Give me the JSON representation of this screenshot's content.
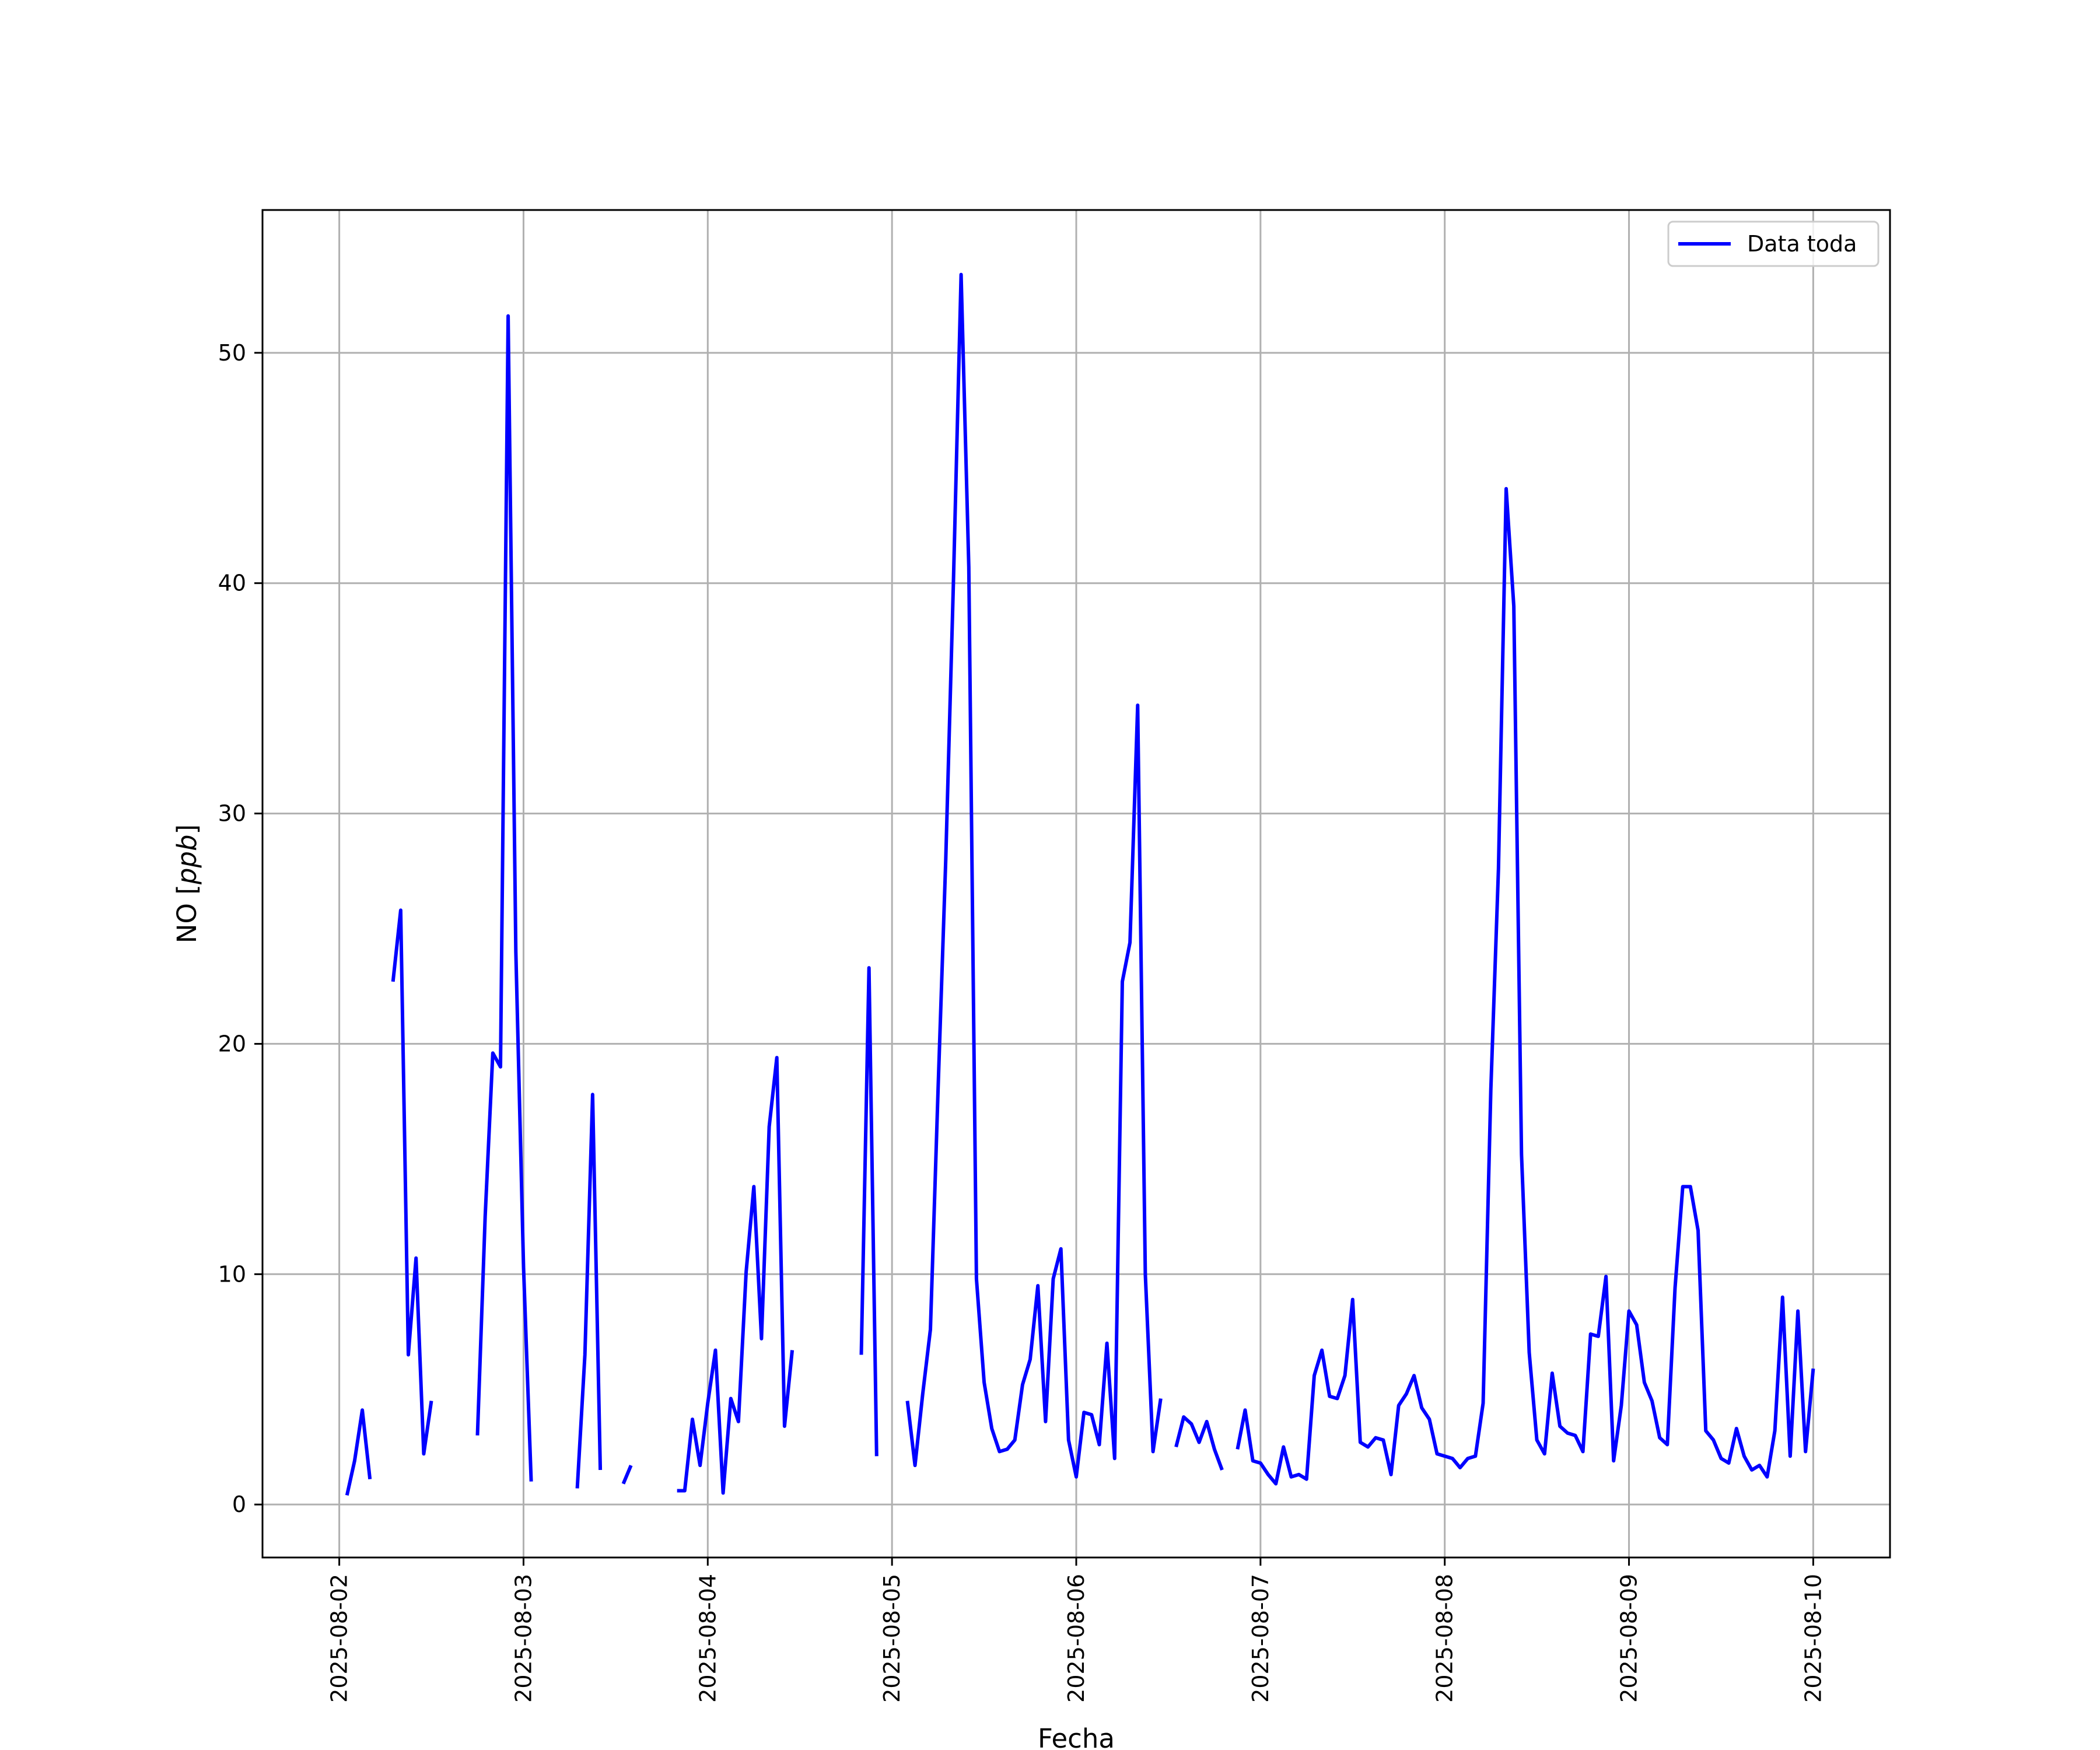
{
  "chart_data": {
    "type": "line",
    "title": "",
    "xlabel": "Fecha",
    "ylabel_text": "NO ",
    "ylabel_unit": "ppb",
    "x_unit": "days",
    "xlim": [
      "2025-08-01 14:00",
      "2025-08-10 10:00"
    ],
    "ylim": [
      -2.3,
      56.2
    ],
    "xticks": [
      "2025-08-02",
      "2025-08-03",
      "2025-08-04",
      "2025-08-05",
      "2025-08-06",
      "2025-08-07",
      "2025-08-08",
      "2025-08-09",
      "2025-08-10"
    ],
    "yticks": [
      0,
      10,
      20,
      30,
      40,
      50
    ],
    "grid": true,
    "legend_position": "top-right",
    "colors": {
      "series": "#0000ff",
      "grid": "#b0b0b0"
    },
    "series": [
      {
        "name": "Data toda",
        "segments": [
          [
            [
              "2025-08-02 01:00",
              0.4
            ],
            [
              "2025-08-02 02:00",
              1.9
            ],
            [
              "2025-08-02 03:00",
              4.1
            ],
            [
              "2025-08-02 04:00",
              1.1
            ]
          ],
          [
            [
              "2025-08-02 07:00",
              22.7
            ],
            [
              "2025-08-02 08:00",
              25.8
            ],
            [
              "2025-08-02 09:00",
              6.5
            ],
            [
              "2025-08-02 10:00",
              10.7
            ],
            [
              "2025-08-02 11:00",
              2.2
            ],
            [
              "2025-08-02 12:00",
              4.5
            ]
          ],
          [
            [
              "2025-08-02 18:00",
              3.0
            ],
            [
              "2025-08-02 19:00",
              12.5
            ],
            [
              "2025-08-02 20:00",
              19.6
            ],
            [
              "2025-08-02 21:00",
              19.0
            ],
            [
              "2025-08-02 22:00",
              51.6
            ],
            [
              "2025-08-02 23:00",
              24.0
            ],
            [
              "2025-08-03 00:00",
              10.3
            ],
            [
              "2025-08-03 01:00",
              1.0
            ]
          ],
          [
            [
              "2025-08-03 07:00",
              0.7
            ],
            [
              "2025-08-03 08:00",
              6.5
            ],
            [
              "2025-08-03 09:00",
              17.8
            ],
            [
              "2025-08-03 10:00",
              1.5
            ]
          ],
          [
            [
              "2025-08-03 13:00",
              0.9
            ],
            [
              "2025-08-03 14:00",
              1.7
            ]
          ],
          [
            [
              "2025-08-03 20:00",
              0.6
            ],
            [
              "2025-08-03 21:00",
              0.6
            ],
            [
              "2025-08-03 22:00",
              3.7
            ],
            [
              "2025-08-03 23:00",
              1.7
            ],
            [
              "2025-08-04 00:00",
              4.4
            ],
            [
              "2025-08-04 01:00",
              6.7
            ],
            [
              "2025-08-04 02:00",
              0.5
            ],
            [
              "2025-08-04 03:00",
              4.6
            ],
            [
              "2025-08-04 04:00",
              3.6
            ],
            [
              "2025-08-04 05:00",
              10.1
            ],
            [
              "2025-08-04 06:00",
              13.8
            ],
            [
              "2025-08-04 07:00",
              7.2
            ],
            [
              "2025-08-04 08:00",
              16.4
            ],
            [
              "2025-08-04 09:00",
              19.4
            ],
            [
              "2025-08-04 10:00",
              3.4
            ],
            [
              "2025-08-04 11:00",
              6.7
            ]
          ],
          [
            [
              "2025-08-04 20:00",
              6.5
            ],
            [
              "2025-08-04 21:00",
              23.3
            ],
            [
              "2025-08-04 22:00",
              2.1
            ]
          ],
          [
            [
              "2025-08-05 02:00",
              4.5
            ],
            [
              "2025-08-05 03:00",
              1.7
            ],
            [
              "2025-08-05 04:00",
              4.8
            ],
            [
              "2025-08-05 05:00",
              7.6
            ],
            [
              "2025-08-05 06:00",
              18.0
            ],
            [
              "2025-08-05 07:00",
              28.0
            ],
            [
              "2025-08-05 08:00",
              40.0
            ],
            [
              "2025-08-05 09:00",
              53.4
            ],
            [
              "2025-08-05 10:00",
              40.7
            ],
            [
              "2025-08-05 11:00",
              9.8
            ],
            [
              "2025-08-05 12:00",
              5.3
            ],
            [
              "2025-08-05 13:00",
              3.3
            ],
            [
              "2025-08-05 14:00",
              2.3
            ],
            [
              "2025-08-05 15:00",
              2.4
            ],
            [
              "2025-08-05 16:00",
              2.8
            ],
            [
              "2025-08-05 17:00",
              5.2
            ],
            [
              "2025-08-05 18:00",
              6.3
            ],
            [
              "2025-08-05 19:00",
              9.5
            ],
            [
              "2025-08-05 20:00",
              3.6
            ],
            [
              "2025-08-05 21:00",
              9.8
            ],
            [
              "2025-08-05 22:00",
              11.1
            ],
            [
              "2025-08-05 23:00",
              2.8
            ],
            [
              "2025-08-06 00:00",
              1.2
            ],
            [
              "2025-08-06 01:00",
              4.0
            ],
            [
              "2025-08-06 02:00",
              3.9
            ],
            [
              "2025-08-06 03:00",
              2.6
            ],
            [
              "2025-08-06 04:00",
              7.0
            ],
            [
              "2025-08-06 05:00",
              2.0
            ],
            [
              "2025-08-06 06:00",
              22.7
            ],
            [
              "2025-08-06 07:00",
              24.4
            ],
            [
              "2025-08-06 08:00",
              34.7
            ],
            [
              "2025-08-06 09:00",
              10.0
            ],
            [
              "2025-08-06 10:00",
              2.3
            ],
            [
              "2025-08-06 11:00",
              4.6
            ]
          ],
          [
            [
              "2025-08-06 13:00",
              2.5
            ],
            [
              "2025-08-06 14:00",
              3.8
            ],
            [
              "2025-08-06 15:00",
              3.5
            ],
            [
              "2025-08-06 16:00",
              2.7
            ],
            [
              "2025-08-06 17:00",
              3.6
            ],
            [
              "2025-08-06 18:00",
              2.4
            ],
            [
              "2025-08-06 19:00",
              1.5
            ]
          ],
          [
            [
              "2025-08-06 21:00",
              2.4
            ],
            [
              "2025-08-06 22:00",
              4.1
            ],
            [
              "2025-08-06 23:00",
              1.9
            ],
            [
              "2025-08-07 00:00",
              1.8
            ],
            [
              "2025-08-07 01:00",
              1.3
            ],
            [
              "2025-08-07 02:00",
              0.9
            ],
            [
              "2025-08-07 03:00",
              2.5
            ],
            [
              "2025-08-07 04:00",
              1.2
            ],
            [
              "2025-08-07 05:00",
              1.3
            ],
            [
              "2025-08-07 06:00",
              1.1
            ],
            [
              "2025-08-07 07:00",
              5.6
            ],
            [
              "2025-08-07 08:00",
              6.7
            ],
            [
              "2025-08-07 09:00",
              4.7
            ],
            [
              "2025-08-07 10:00",
              4.6
            ],
            [
              "2025-08-07 11:00",
              5.6
            ],
            [
              "2025-08-07 12:00",
              8.9
            ],
            [
              "2025-08-07 13:00",
              2.7
            ],
            [
              "2025-08-07 14:00",
              2.5
            ],
            [
              "2025-08-07 15:00",
              2.9
            ],
            [
              "2025-08-07 16:00",
              2.8
            ],
            [
              "2025-08-07 17:00",
              1.3
            ],
            [
              "2025-08-07 18:00",
              4.3
            ],
            [
              "2025-08-07 19:00",
              4.8
            ],
            [
              "2025-08-07 20:00",
              5.6
            ],
            [
              "2025-08-07 21:00",
              4.2
            ],
            [
              "2025-08-07 22:00",
              3.7
            ],
            [
              "2025-08-07 23:00",
              2.2
            ],
            [
              "2025-08-08 00:00",
              2.1
            ],
            [
              "2025-08-08 01:00",
              2.0
            ],
            [
              "2025-08-08 02:00",
              1.6
            ],
            [
              "2025-08-08 03:00",
              2.0
            ],
            [
              "2025-08-08 04:00",
              2.1
            ],
            [
              "2025-08-08 05:00",
              4.4
            ],
            [
              "2025-08-08 06:00",
              18.0
            ],
            [
              "2025-08-08 07:00",
              27.6
            ],
            [
              "2025-08-08 08:00",
              44.1
            ],
            [
              "2025-08-08 09:00",
              39.0
            ],
            [
              "2025-08-08 10:00",
              15.2
            ],
            [
              "2025-08-08 11:00",
              6.6
            ],
            [
              "2025-08-08 12:00",
              2.8
            ],
            [
              "2025-08-08 13:00",
              2.2
            ],
            [
              "2025-08-08 14:00",
              5.7
            ],
            [
              "2025-08-08 15:00",
              3.4
            ],
            [
              "2025-08-08 16:00",
              3.1
            ],
            [
              "2025-08-08 17:00",
              3.0
            ],
            [
              "2025-08-08 18:00",
              2.3
            ],
            [
              "2025-08-08 19:00",
              7.4
            ],
            [
              "2025-08-08 20:00",
              7.3
            ],
            [
              "2025-08-08 21:00",
              9.9
            ],
            [
              "2025-08-08 22:00",
              1.9
            ],
            [
              "2025-08-08 23:00",
              4.3
            ],
            [
              "2025-08-09 00:00",
              8.4
            ],
            [
              "2025-08-09 01:00",
              7.8
            ],
            [
              "2025-08-09 02:00",
              5.3
            ],
            [
              "2025-08-09 03:00",
              4.5
            ],
            [
              "2025-08-09 04:00",
              2.9
            ],
            [
              "2025-08-09 05:00",
              2.6
            ],
            [
              "2025-08-09 06:00",
              9.4
            ],
            [
              "2025-08-09 07:00",
              13.8
            ],
            [
              "2025-08-09 08:00",
              13.8
            ],
            [
              "2025-08-09 09:00",
              11.9
            ],
            [
              "2025-08-09 10:00",
              3.2
            ],
            [
              "2025-08-09 11:00",
              2.8
            ],
            [
              "2025-08-09 12:00",
              2.0
            ],
            [
              "2025-08-09 13:00",
              1.8
            ],
            [
              "2025-08-09 14:00",
              3.3
            ],
            [
              "2025-08-09 15:00",
              2.1
            ],
            [
              "2025-08-09 16:00",
              1.5
            ],
            [
              "2025-08-09 17:00",
              1.7
            ],
            [
              "2025-08-09 18:00",
              1.2
            ],
            [
              "2025-08-09 19:00",
              3.2
            ],
            [
              "2025-08-09 20:00",
              9.0
            ],
            [
              "2025-08-09 21:00",
              2.1
            ],
            [
              "2025-08-09 22:00",
              8.4
            ],
            [
              "2025-08-09 23:00",
              2.3
            ],
            [
              "2025-08-10 00:00",
              5.9
            ]
          ]
        ]
      }
    ]
  }
}
